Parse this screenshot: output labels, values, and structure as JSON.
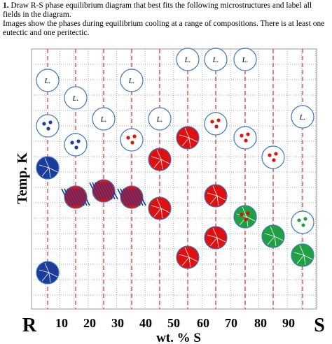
{
  "question": {
    "number": "1.",
    "text": "Draw R-S phase equilibrium diagram that best fits the following microstructures and label all fields in the diagram.",
    "note": "Images show the phases during equilibrium cooling at a range of compositions. There is at least one eutectic and one peritectic."
  },
  "microstructure_labels": [
    "L.",
    "L.",
    "L.",
    "L.",
    "L.",
    "L.",
    "L.",
    "L.",
    "L."
  ],
  "axis": {
    "x_labels": [
      "R",
      "10",
      "20",
      "30",
      "40",
      "50",
      "60",
      "70",
      "80",
      "90",
      "S"
    ],
    "x_title": "wt. % S",
    "y_title": "Temp. K"
  }
}
